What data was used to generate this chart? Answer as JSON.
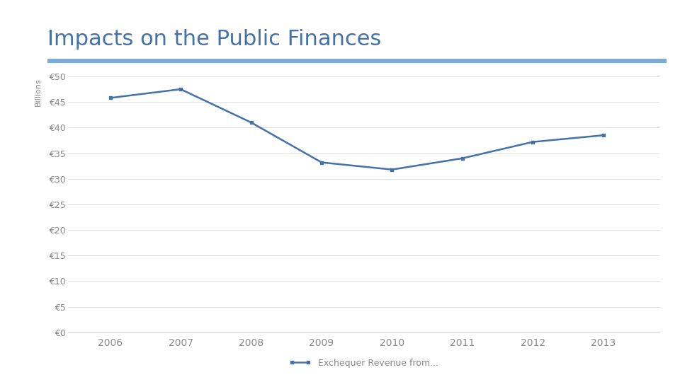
{
  "title": "Impacts on the Public Finances",
  "ylabel": "Billions",
  "background_color": "#ffffff",
  "title_color": "#4472a8",
  "title_fontsize": 22,
  "line_color": "#4472a8",
  "separator_color": "#7aadde",
  "years": [
    2006,
    2007,
    2008,
    2009,
    2010,
    2011,
    2012,
    2013
  ],
  "values": [
    45.8,
    47.5,
    41.0,
    33.2,
    31.8,
    34.0,
    37.2,
    38.5
  ],
  "ylim": [
    0,
    50
  ],
  "yticks": [
    0,
    5,
    10,
    15,
    20,
    25,
    30,
    35,
    40,
    45,
    50
  ],
  "legend_label": "Exchequer Revenue from...",
  "tick_color": "#888888",
  "grid_color": "#d0d0d0",
  "ylabel_color": "#888888",
  "ylabel_fontsize": 8
}
